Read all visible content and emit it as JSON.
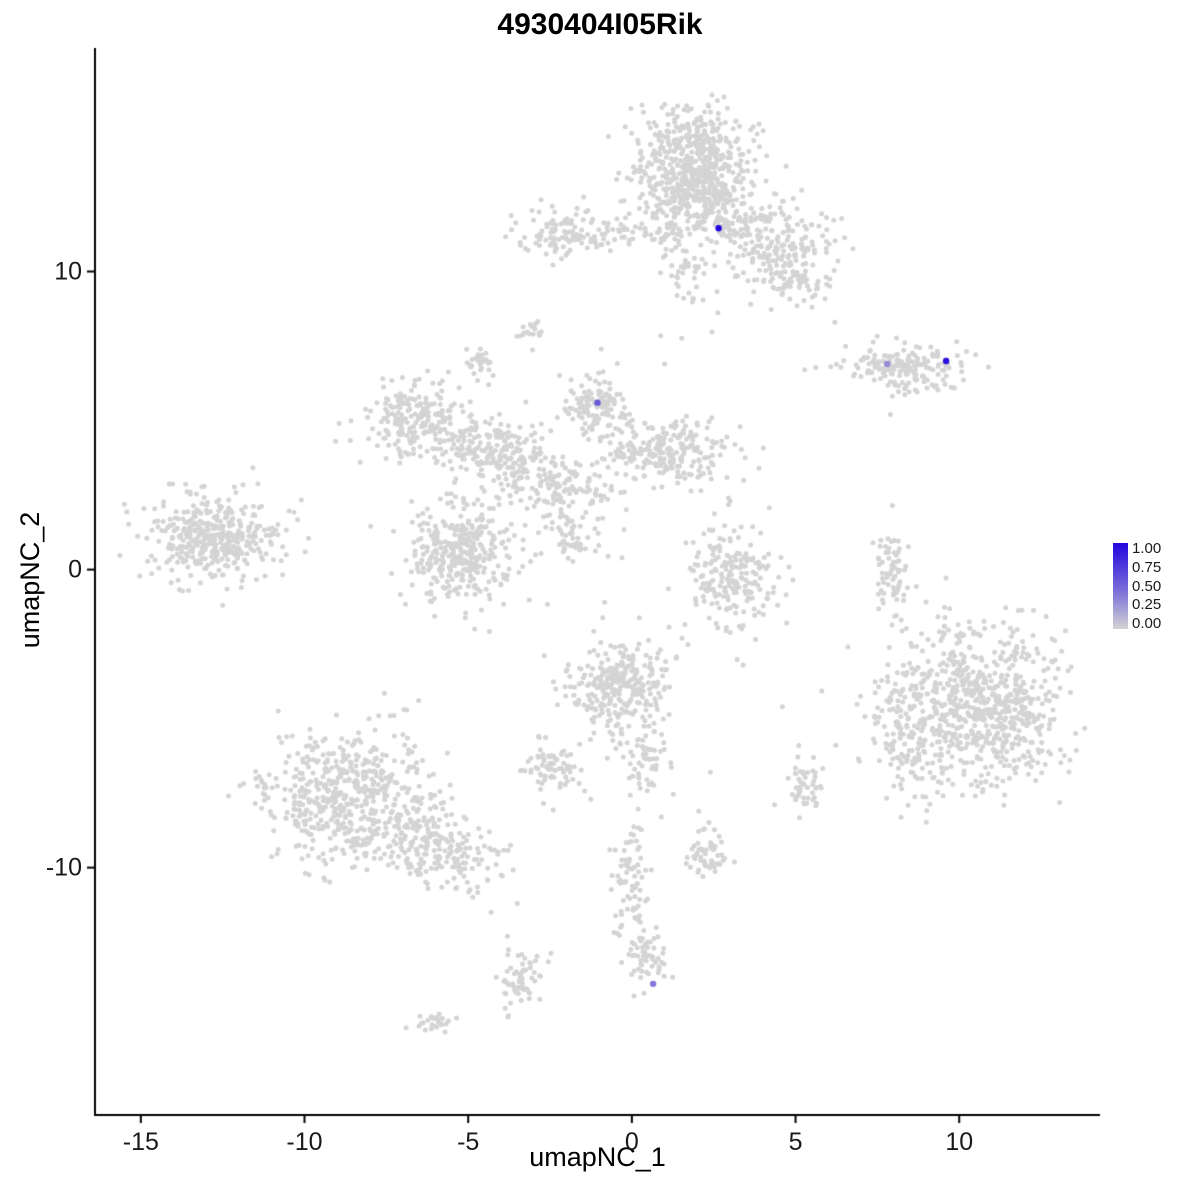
{
  "chart_data": {
    "type": "scatter",
    "title": "4930404I05Rik",
    "xlabel": "umapNC_1",
    "ylabel": "umapNC_2",
    "xlim": [
      -16.4,
      14.3
    ],
    "ylim": [
      -18.3,
      17.5
    ],
    "x_ticks": [
      "-15",
      "-10",
      "-5",
      "0",
      "5",
      "10"
    ],
    "x_tick_values": [
      -15,
      -10,
      -5,
      0,
      5,
      10
    ],
    "y_ticks": [
      "10",
      "0",
      "-10"
    ],
    "y_tick_values": [
      10,
      0,
      -10
    ],
    "grid": false,
    "legend_position": "right",
    "colors": {
      "axis": "#000000",
      "point_gray": "#d4d4d4",
      "expression_low": "#d4d4d4",
      "expression_high": "#2106de"
    },
    "legend": {
      "labels": [
        "1.00",
        "0.75",
        "0.50",
        "0.25",
        "0.00"
      ],
      "high_color": "#2106de",
      "mid_color": "#7a6dd9",
      "low_color": "#d4d4d4"
    },
    "clusters": [
      {
        "cx": 1.9,
        "cy": 13.8,
        "sx": 0.85,
        "sy": 0.85,
        "rot": 0,
        "n": 430
      },
      {
        "cx": 1.7,
        "cy": 12.6,
        "sx": 1.05,
        "sy": 0.5,
        "rot": 0,
        "n": 160
      },
      {
        "cx": 3.9,
        "cy": 11.3,
        "sx": 1.25,
        "sy": 0.6,
        "rot": -18,
        "n": 240
      },
      {
        "cx": 4.7,
        "cy": 9.9,
        "sx": 0.85,
        "sy": 0.45,
        "rot": -15,
        "n": 90
      },
      {
        "cx": 1.6,
        "cy": 10.4,
        "sx": 0.5,
        "sy": 0.8,
        "rot": 0,
        "n": 70
      },
      {
        "cx": -2.0,
        "cy": 11.25,
        "sx": 0.8,
        "sy": 0.38,
        "rot": 0,
        "n": 120
      },
      {
        "cx": 0.2,
        "cy": 11.25,
        "sx": 0.7,
        "sy": 0.16,
        "rot": 0,
        "n": 30
      },
      {
        "cx": -3.1,
        "cy": 8.0,
        "sx": 0.28,
        "sy": 0.22,
        "rot": 0,
        "n": 18
      },
      {
        "cx": -4.7,
        "cy": 6.9,
        "sx": 0.32,
        "sy": 0.26,
        "rot": 0,
        "n": 30
      },
      {
        "cx": 8.3,
        "cy": 6.85,
        "sx": 1.05,
        "sy": 0.3,
        "rot": 0,
        "n": 170
      },
      {
        "cx": 8.7,
        "cy": 6.1,
        "sx": 0.5,
        "sy": 0.13,
        "rot": 0,
        "n": 22
      },
      {
        "cx": -6.7,
        "cy": 5.1,
        "sx": 0.8,
        "sy": 0.62,
        "rot": 10,
        "n": 210
      },
      {
        "cx": -4.3,
        "cy": 4.1,
        "sx": 0.9,
        "sy": 0.55,
        "rot": 0,
        "n": 190
      },
      {
        "cx": -1.0,
        "cy": 5.5,
        "sx": 0.48,
        "sy": 0.55,
        "rot": 0,
        "n": 130
      },
      {
        "cx": 1.2,
        "cy": 3.9,
        "sx": 0.95,
        "sy": 0.55,
        "rot": 0,
        "n": 230
      },
      {
        "cx": -2.4,
        "cy": 2.9,
        "sx": 1.0,
        "sy": 0.5,
        "rot": 0,
        "n": 170
      },
      {
        "cx": -1.8,
        "cy": 1.2,
        "sx": 0.5,
        "sy": 0.45,
        "rot": -40,
        "n": 60
      },
      {
        "cx": -12.8,
        "cy": 1.1,
        "sx": 0.92,
        "sy": 0.72,
        "rot": 0,
        "n": 390
      },
      {
        "cx": -5.2,
        "cy": 0.6,
        "sx": 0.85,
        "sy": 0.8,
        "rot": 0,
        "n": 340
      },
      {
        "cx": 3.0,
        "cy": -0.3,
        "sx": 0.7,
        "sy": 0.85,
        "rot": 0,
        "n": 200
      },
      {
        "cx": 7.9,
        "cy": -0.1,
        "sx": 0.26,
        "sy": 0.65,
        "rot": 0,
        "n": 70
      },
      {
        "cx": 10.6,
        "cy": -4.6,
        "sx": 1.3,
        "sy": 1.35,
        "rot": 0,
        "n": 720
      },
      {
        "cx": 8.4,
        "cy": -5.3,
        "sx": 0.6,
        "sy": 1.15,
        "rot": 0,
        "n": 130
      },
      {
        "cx": -0.4,
        "cy": -3.9,
        "sx": 0.8,
        "sy": 0.85,
        "rot": 0,
        "n": 290
      },
      {
        "cx": 0.4,
        "cy": -6.3,
        "sx": 0.33,
        "sy": 0.6,
        "rot": 0,
        "n": 55
      },
      {
        "cx": -2.4,
        "cy": -6.7,
        "sx": 0.42,
        "sy": 0.45,
        "rot": 0,
        "n": 75
      },
      {
        "cx": -8.7,
        "cy": -7.6,
        "sx": 1.3,
        "sy": 1.15,
        "rot": 0,
        "n": 540
      },
      {
        "cx": -5.9,
        "cy": -9.3,
        "sx": 1.05,
        "sy": 0.6,
        "rot": -25,
        "n": 210
      },
      {
        "cx": 5.3,
        "cy": -7.2,
        "sx": 0.27,
        "sy": 0.42,
        "rot": 0,
        "n": 48
      },
      {
        "cx": 2.3,
        "cy": -9.6,
        "sx": 0.32,
        "sy": 0.42,
        "rot": 0,
        "n": 55
      },
      {
        "cx": 0.0,
        "cy": -10.8,
        "sx": 0.3,
        "sy": 1.25,
        "rot": 0,
        "n": 85
      },
      {
        "cx": 0.5,
        "cy": -13.0,
        "sx": 0.36,
        "sy": 0.35,
        "rot": 0,
        "n": 48
      },
      {
        "cx": -3.4,
        "cy": -13.8,
        "sx": 0.27,
        "sy": 0.55,
        "rot": 0,
        "n": 60
      },
      {
        "cx": -6.1,
        "cy": -15.2,
        "sx": 0.33,
        "sy": 0.16,
        "rot": 0,
        "n": 25
      }
    ],
    "strays": [
      [
        5.5,
        8.8
      ],
      [
        6.2,
        8.3
      ],
      [
        7.9,
        5.2
      ],
      [
        3.0,
        2.3
      ],
      [
        2.2,
        1.2
      ],
      [
        -0.3,
        0.4
      ],
      [
        4.6,
        -4.6
      ],
      [
        5.1,
        -5.9
      ],
      [
        2.4,
        -6.8
      ],
      [
        -4.3,
        -11.5
      ],
      [
        -3.8,
        -12.3
      ],
      [
        0.9,
        -8.3
      ],
      [
        -12.5,
        -1.2
      ],
      [
        -10.7,
        -5.8
      ],
      [
        1.0,
        6.9
      ],
      [
        -8.3,
        3.6
      ],
      [
        6.6,
        -2.6
      ],
      [
        3.4,
        -3.2
      ]
    ],
    "highlights": [
      {
        "x": 2.65,
        "y": 11.45,
        "value": 1.0
      },
      {
        "x": 9.6,
        "y": 7.0,
        "value": 0.95
      },
      {
        "x": 7.8,
        "y": 6.9,
        "value": 0.35
      },
      {
        "x": -1.05,
        "y": 5.6,
        "value": 0.6
      },
      {
        "x": 0.65,
        "y": -13.9,
        "value": 0.45
      }
    ],
    "point_radius": 2.5,
    "highlight_radius": 3.2
  }
}
